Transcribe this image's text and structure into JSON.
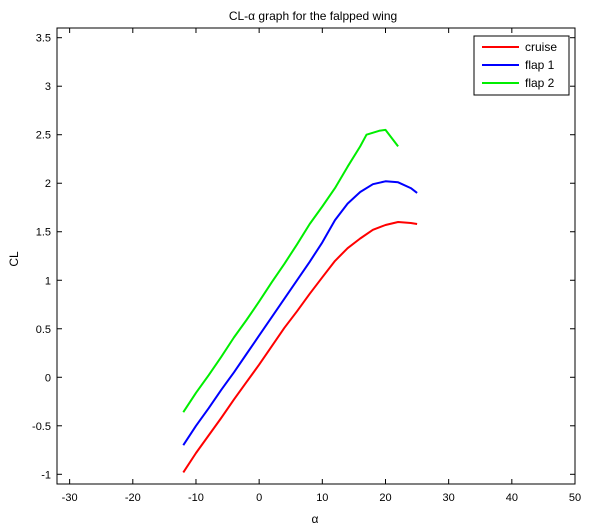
{
  "chart_data": {
    "type": "line",
    "title": "CL-α graph for the falpped wing",
    "xlabel": "α",
    "ylabel": "CL",
    "xlim": [
      -32,
      50
    ],
    "ylim": [
      -1.1,
      3.6
    ],
    "xticks": [
      -30,
      -20,
      -10,
      0,
      10,
      20,
      30,
      40,
      50
    ],
    "yticks": [
      -1,
      -0.5,
      0,
      0.5,
      1,
      1.5,
      2,
      2.5,
      3,
      3.5
    ],
    "xtick_labels": [
      "-30",
      "-20",
      "-10",
      "0",
      "10",
      "20",
      "30",
      "40",
      "50"
    ],
    "ytick_labels": [
      "-1",
      "-0.5",
      "0",
      "0.5",
      "1",
      "1.5",
      "2",
      "2.5",
      "3",
      "3.5"
    ],
    "grid": false,
    "legend_position": "top-right",
    "series": [
      {
        "name": "cruise",
        "color": "#ff0000",
        "x": [
          -12,
          -10,
          -8,
          -6,
          -4,
          -2,
          0,
          2,
          4,
          6,
          8,
          10,
          12,
          14,
          16,
          18,
          20,
          22,
          24,
          25
        ],
        "y": [
          -0.98,
          -0.78,
          -0.6,
          -0.42,
          -0.23,
          -0.05,
          0.13,
          0.32,
          0.51,
          0.68,
          0.86,
          1.03,
          1.2,
          1.33,
          1.43,
          1.52,
          1.57,
          1.6,
          1.59,
          1.58
        ]
      },
      {
        "name": "flap 1",
        "color": "#0000ff",
        "x": [
          -12,
          -10,
          -8,
          -6,
          -4,
          -2,
          0,
          2,
          4,
          6,
          8,
          10,
          12,
          14,
          16,
          18,
          20,
          22,
          24,
          25
        ],
        "y": [
          -0.7,
          -0.5,
          -0.32,
          -0.13,
          0.05,
          0.24,
          0.43,
          0.62,
          0.81,
          1.0,
          1.19,
          1.39,
          1.62,
          1.79,
          1.91,
          1.99,
          2.02,
          2.01,
          1.95,
          1.9
        ]
      },
      {
        "name": "flap 2",
        "color": "#00ee00",
        "x": [
          -12,
          -10,
          -8,
          -6,
          -4,
          -2,
          0,
          2,
          4,
          6,
          8,
          10,
          12,
          14,
          16,
          17,
          19,
          20,
          22
        ],
        "y": [
          -0.36,
          -0.16,
          0.02,
          0.21,
          0.41,
          0.59,
          0.78,
          0.98,
          1.17,
          1.37,
          1.58,
          1.76,
          1.95,
          2.17,
          2.38,
          2.5,
          2.54,
          2.55,
          2.38
        ]
      }
    ]
  }
}
